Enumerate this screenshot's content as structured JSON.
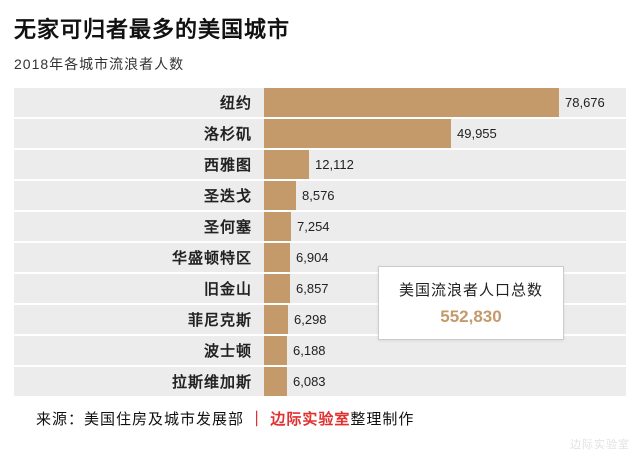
{
  "title": "无家可归者最多的美国城市",
  "subtitle": "2018年各城市流浪者人数",
  "chart_data": {
    "type": "bar",
    "orientation": "horizontal",
    "title": "无家可归者最多的美国城市",
    "subtitle": "2018年各城市流浪者人数",
    "categories": [
      "纽约",
      "洛杉矶",
      "西雅图",
      "圣迭戈",
      "圣何塞",
      "华盛顿特区",
      "旧金山",
      "菲尼克斯",
      "波士顿",
      "拉斯维加斯"
    ],
    "values": [
      78676,
      49955,
      12112,
      8576,
      7254,
      6904,
      6857,
      6298,
      6188,
      6083
    ],
    "value_labels": [
      "78,676",
      "49,955",
      "12,112",
      "8,576",
      "7,254",
      "6,904",
      "6,857",
      "6,298",
      "6,188",
      "6,083"
    ],
    "xlim": [
      0,
      80000
    ],
    "grid": false,
    "legend": false,
    "bar_color": "#c49a6b",
    "row_bg_color": "#ececec"
  },
  "callout": {
    "label": "美国流浪者人口总数",
    "value": "552,830",
    "value_color": "#c49a6b"
  },
  "footer": {
    "source": "来源：美国住房及城市发展部 ",
    "separator": "｜ ",
    "brand": "边际实验室",
    "suffix": "整理制作",
    "brand_color": "#e03131"
  },
  "watermark": "边际实验室"
}
